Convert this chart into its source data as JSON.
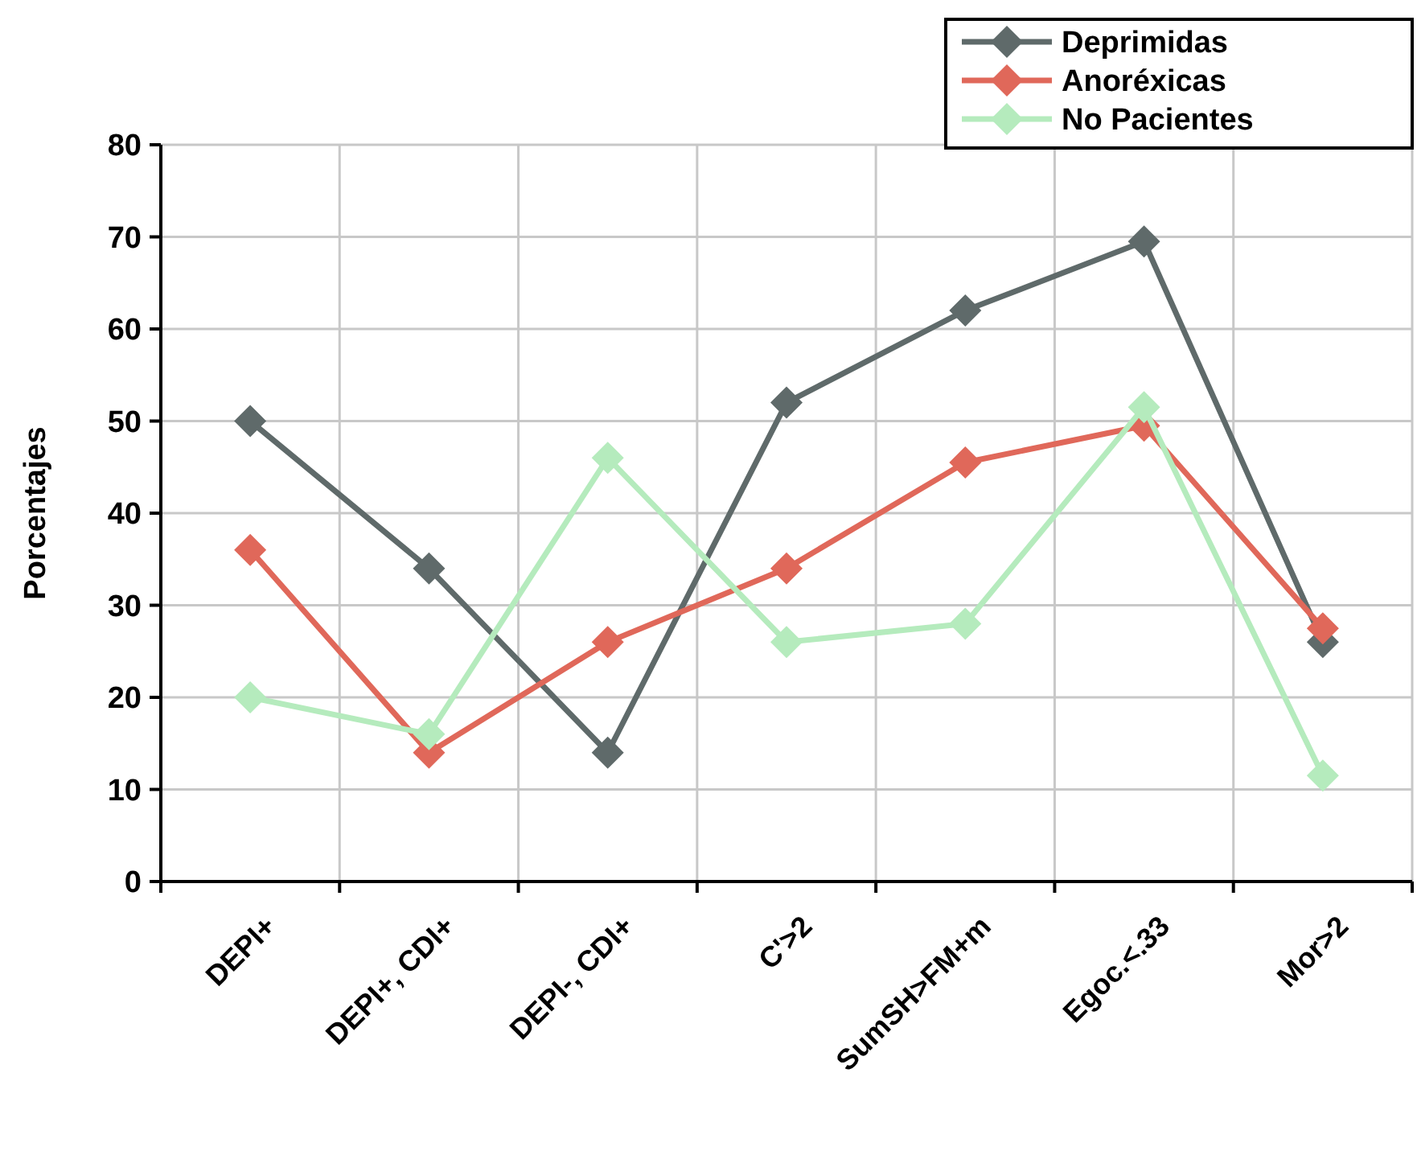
{
  "chart_data": {
    "type": "line",
    "ylabel": "Porcentajes",
    "categories": [
      "DEPI+",
      "DEPI+, CDI+",
      "DEPI-, CDI+",
      "C'>2",
      "SumSH>FM+m",
      "Egoc.<.33",
      "Mor>2"
    ],
    "series": [
      {
        "name": "Deprimidas",
        "color": "#5f6a6a",
        "values": [
          50,
          34,
          14,
          52,
          62,
          69.5,
          26
        ]
      },
      {
        "name": "Anoréxicas",
        "color": "#e0685a",
        "values": [
          36,
          14,
          26,
          34,
          45.5,
          49.5,
          27.5
        ]
      },
      {
        "name": "No Pacientes",
        "color": "#b5ebbd",
        "values": [
          20,
          16,
          46,
          26,
          28,
          51.5,
          11.5
        ]
      }
    ],
    "ylim": [
      0,
      80
    ],
    "yticks": [
      0,
      10,
      20,
      30,
      40,
      50,
      60,
      70,
      80
    ],
    "grid": true,
    "legend": "top right",
    "marker": "diamond",
    "line_style": "solid"
  }
}
